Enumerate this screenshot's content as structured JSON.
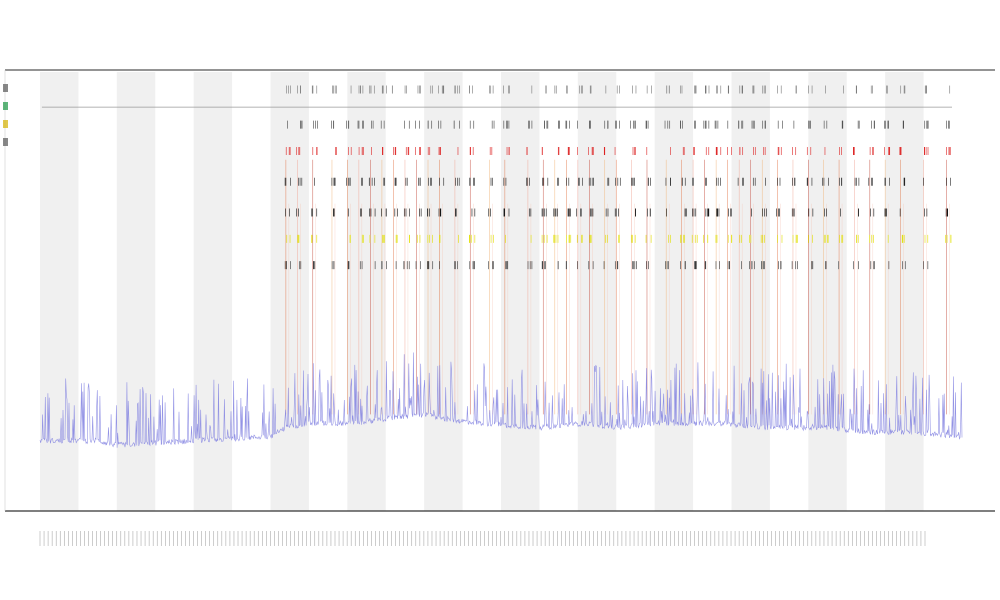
{
  "chart_data": {
    "type": "line",
    "title": "",
    "subtitle": [
      "",
      ""
    ],
    "xlabel": "",
    "ylabel": "",
    "ylim": [
      0,
      100
    ],
    "grid": false,
    "x_range": [
      0,
      240
    ],
    "day_bands": {
      "period": 20,
      "shaded_offset": 0,
      "count": 24
    },
    "trace_start": 0,
    "tick_count": 220,
    "legend": {
      "placement": "left",
      "entries": [
        {
          "name": "",
          "color": "#555555"
        },
        {
          "name": "",
          "color": "#1a9641"
        },
        {
          "name": "",
          "color": "#d4b100"
        },
        {
          "name": "",
          "color": "#555555"
        }
      ]
    },
    "series": [
      {
        "kind": "baseline",
        "color": "#8080e0",
        "points": [
          [
            0,
            16
          ],
          [
            15,
            16
          ],
          [
            20,
            15
          ],
          [
            40,
            16
          ],
          [
            60,
            17
          ],
          [
            62,
            18
          ],
          [
            64,
            19
          ],
          [
            70,
            20
          ],
          [
            82,
            20
          ],
          [
            90,
            21
          ],
          [
            100,
            22
          ],
          [
            105,
            21
          ],
          [
            115,
            20
          ],
          [
            130,
            19
          ],
          [
            142,
            20
          ],
          [
            150,
            19
          ],
          [
            160,
            20
          ],
          [
            175,
            20
          ],
          [
            190,
            19
          ],
          [
            205,
            19
          ],
          [
            215,
            18
          ],
          [
            225,
            18
          ],
          [
            240,
            17
          ]
        ]
      }
    ],
    "event_rows": [
      {
        "label": "",
        "color": "#777777",
        "level": 96
      },
      {
        "label": "",
        "color": "#444444",
        "level": 88
      },
      {
        "label": "",
        "color": "#dd2222",
        "level": 82
      },
      {
        "label": "",
        "color": "#222222",
        "level": 75
      },
      {
        "label": "",
        "color": "#111111",
        "level": 68
      },
      {
        "label": "",
        "color": "#e0e000",
        "level": 62
      },
      {
        "label": "",
        "color": "#333333",
        "level": 56
      }
    ],
    "activity_columns": [
      64,
      67,
      71,
      76,
      80,
      83,
      86,
      89,
      92,
      95,
      98,
      101,
      104,
      108,
      112,
      117,
      121,
      127,
      131,
      134,
      137,
      140,
      143,
      147,
      150,
      154,
      158,
      163,
      167,
      170,
      173,
      176,
      179,
      182,
      185,
      188,
      192,
      196,
      200,
      204,
      208,
      212,
      216,
      220,
      224,
      230,
      236
    ]
  }
}
